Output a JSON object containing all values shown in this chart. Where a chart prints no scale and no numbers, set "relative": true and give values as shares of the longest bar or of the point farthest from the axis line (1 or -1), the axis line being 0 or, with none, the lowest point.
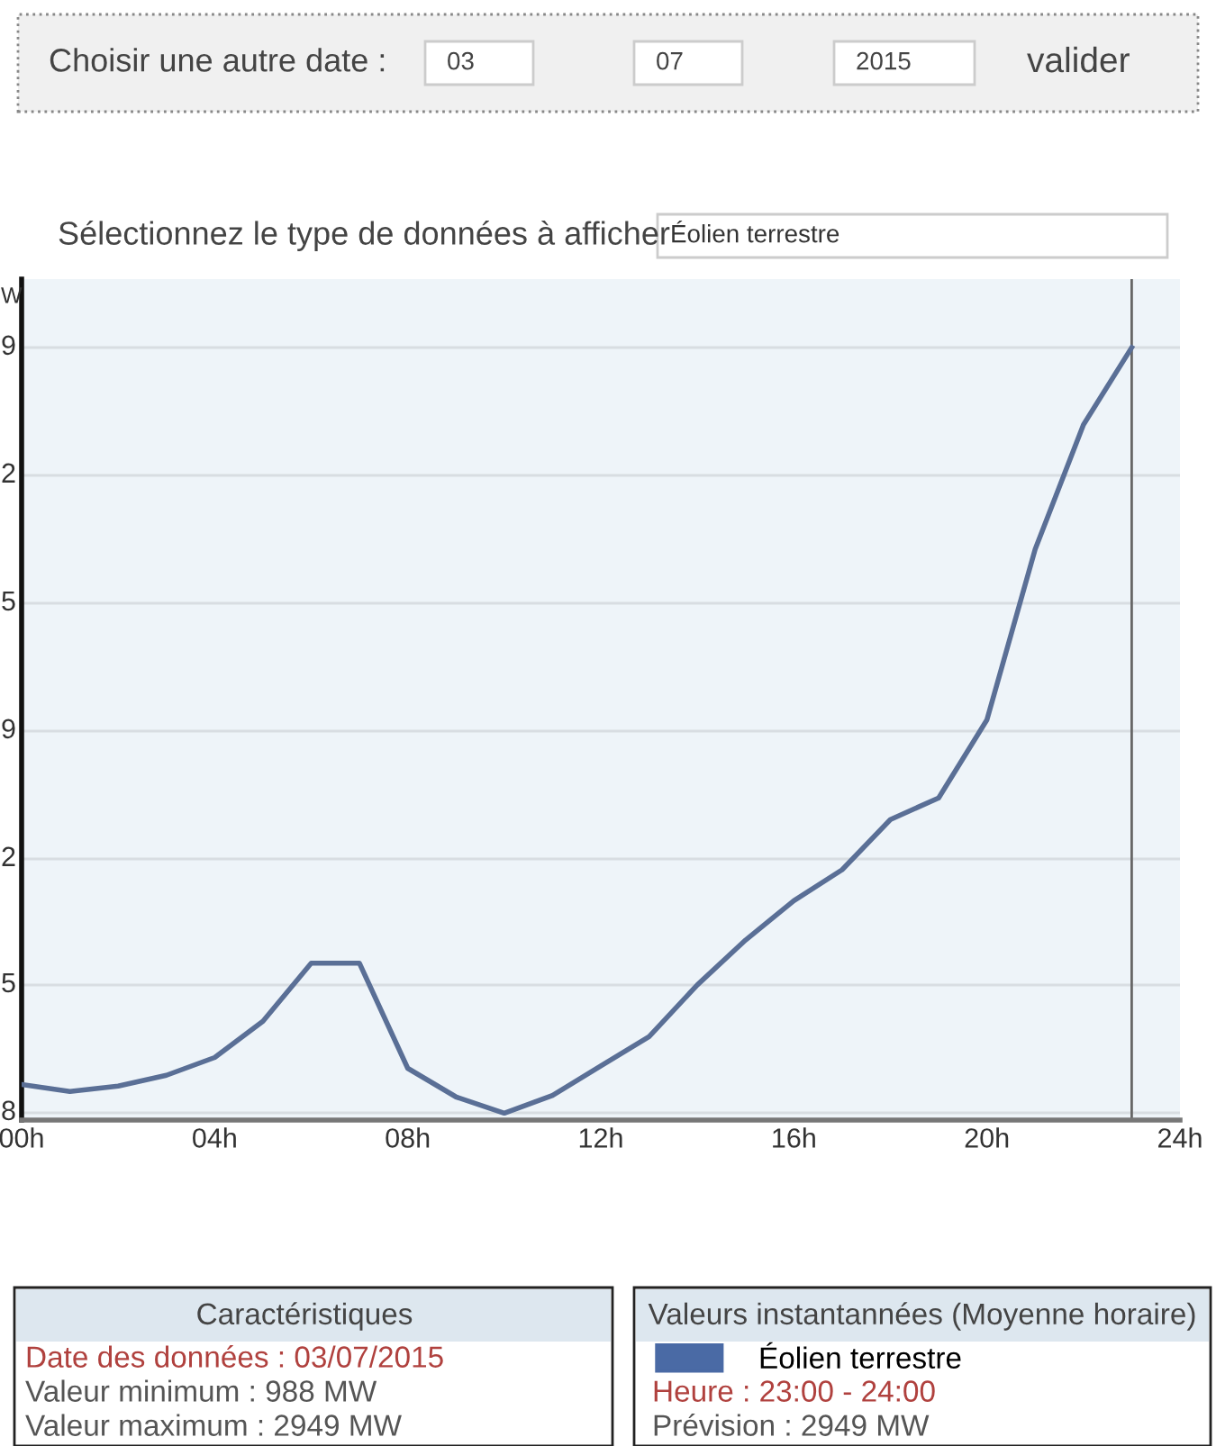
{
  "chart_data": {
    "type": "line",
    "ylabel": "W",
    "relative": true,
    "x": [
      0,
      1,
      2,
      3,
      4,
      5,
      6,
      7,
      8,
      9,
      10,
      11,
      12,
      13,
      14,
      15,
      16,
      17,
      18,
      19,
      20,
      21,
      22,
      23
    ],
    "series": [
      {
        "name": "Éolien terrestre",
        "color": "#5a6f96",
        "values": [
          0.046,
          0.037,
          0.044,
          0.058,
          0.081,
          0.128,
          0.203,
          0.203,
          0.067,
          0.03,
          0.009,
          0.032,
          0.07,
          0.108,
          0.175,
          0.233,
          0.284,
          0.324,
          0.389,
          0.417,
          0.518,
          0.739,
          0.9,
          1
        ]
      }
    ],
    "xlim": [
      0,
      24
    ],
    "xticks": [
      {
        "value": 0,
        "label": "00h"
      },
      {
        "value": 4,
        "label": "04h"
      },
      {
        "value": 8,
        "label": "08h"
      },
      {
        "value": 12,
        "label": "12h"
      },
      {
        "value": 16,
        "label": "16h"
      },
      {
        "value": 20,
        "label": "20h"
      },
      {
        "value": 24,
        "label": "24h"
      }
    ],
    "ref_lines": [
      {
        "axis": "x",
        "value": 23,
        "color": "#666666"
      }
    ],
    "grid": "y",
    "legend": "bottom",
    "marker": "none",
    "line_style": "solid",
    "annotations": [
      "Choisir une autre date :",
      "03",
      "07",
      "2015",
      "valider",
      "Sélectionnez le type de données à afficher",
      "Éolien terrestre",
      "Caractéristiques",
      "Date des données : 03/07/2015",
      "Valeur minimum : 988 MW",
      "Valeur maximum : 2949 MW",
      "Valeurs instantannées (Moyenne horaire)",
      "Heure : 23:00 - 24:00",
      "Prévision : 2949 MW",
      "9",
      "2",
      "5",
      "9",
      "2",
      "5",
      "8"
    ]
  }
}
